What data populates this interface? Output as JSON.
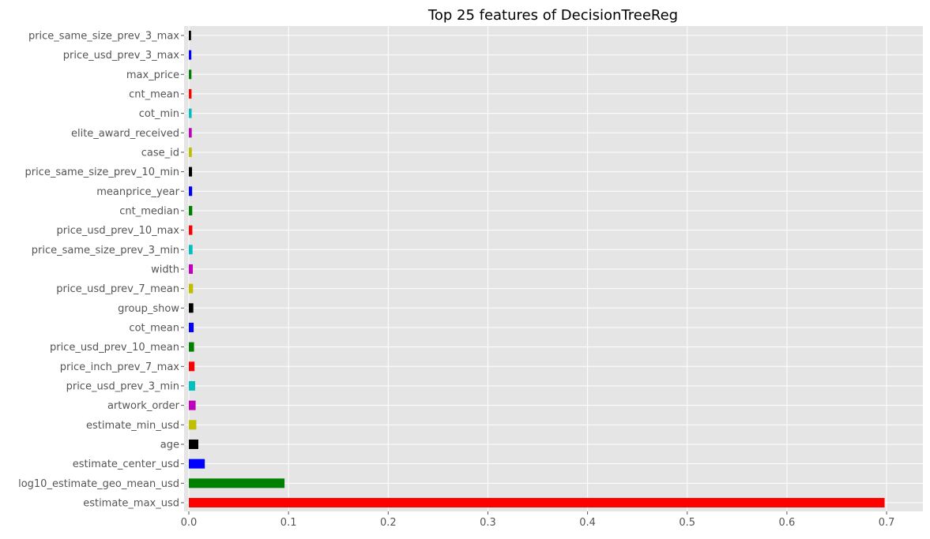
{
  "chart_data": {
    "type": "bar",
    "orientation": "horizontal",
    "title": "Top 25 features of DecisionTreeReg",
    "xlabel": "",
    "ylabel": "",
    "xlim": [
      0,
      0.735
    ],
    "xticks": [
      0.0,
      0.1,
      0.2,
      0.3,
      0.4,
      0.5,
      0.6,
      0.7
    ],
    "xtick_labels": [
      "0.0",
      "0.1",
      "0.2",
      "0.3",
      "0.4",
      "0.5",
      "0.6",
      "0.7"
    ],
    "grid": true,
    "legend": "none",
    "categories": [
      "estimate_max_usd",
      "log10_estimate_geo_mean_usd",
      "estimate_center_usd",
      "age",
      "estimate_min_usd",
      "artwork_order",
      "price_usd_prev_3_min",
      "price_inch_prev_7_max",
      "price_usd_prev_10_mean",
      "cot_mean",
      "group_show",
      "price_usd_prev_7_mean",
      "width",
      "price_same_size_prev_3_min",
      "price_usd_prev_10_max",
      "cnt_median",
      "meanprice_year",
      "price_same_size_prev_10_min",
      "case_id",
      "elite_award_received",
      "cot_min",
      "cnt_mean",
      "max_price",
      "price_usd_prev_3_max",
      "price_same_size_prev_3_max"
    ],
    "values": [
      0.698,
      0.096,
      0.016,
      0.0095,
      0.0075,
      0.0068,
      0.0063,
      0.0057,
      0.0052,
      0.0048,
      0.0045,
      0.0042,
      0.004,
      0.0037,
      0.0035,
      0.0034,
      0.0033,
      0.0032,
      0.003,
      0.0029,
      0.0028,
      0.0027,
      0.0026,
      0.0025,
      0.0022
    ],
    "colors": [
      "#ff0000",
      "#008000",
      "#0000ff",
      "#000000",
      "#bfbf00",
      "#bf00bf",
      "#00bfbf"
    ]
  }
}
